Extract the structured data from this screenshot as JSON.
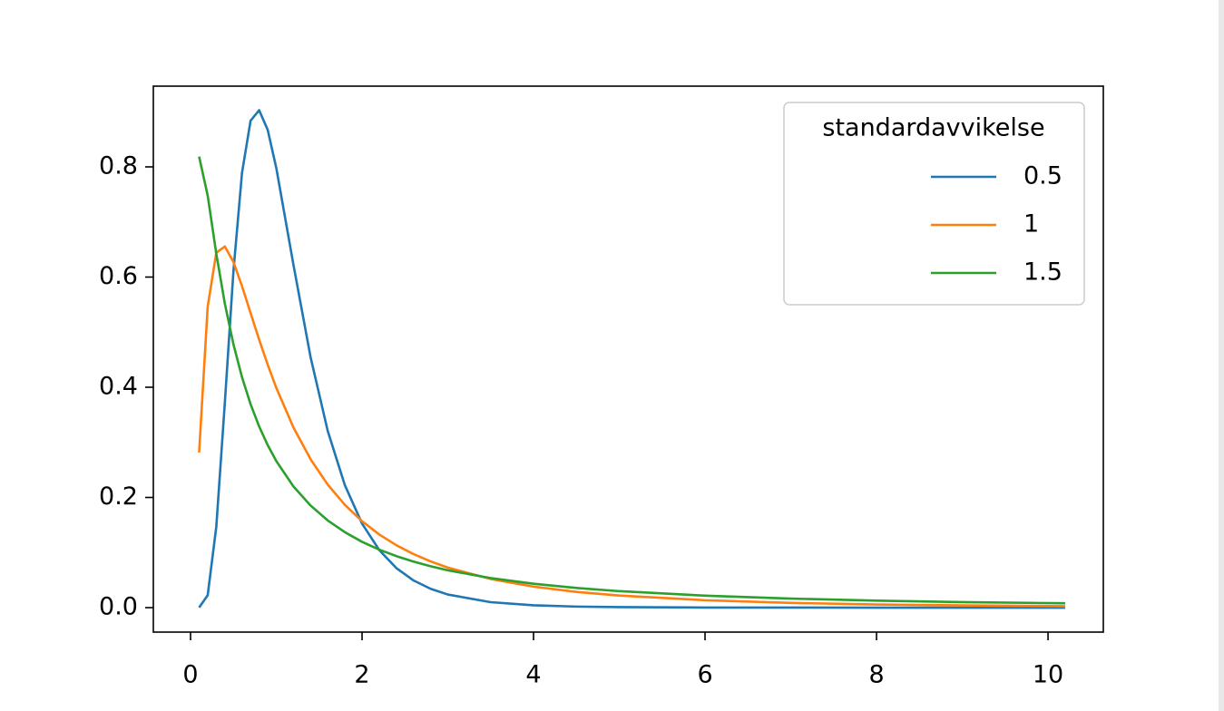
{
  "chart_data": {
    "type": "line",
    "legend_title": "standardavvikelse",
    "legend_position": "upper right",
    "x": [
      0.1,
      0.2,
      0.3,
      0.4,
      0.5,
      0.6,
      0.7,
      0.8,
      0.9,
      1.0,
      1.2,
      1.4,
      1.6,
      1.8,
      2.0,
      2.2,
      2.4,
      2.6,
      2.8,
      3.0,
      3.5,
      4,
      4.5,
      5,
      6,
      7,
      8,
      9,
      10.2
    ],
    "series": [
      {
        "name": "0.5",
        "color": "#1f77b4",
        "values": [
          0.0002,
          0.0225,
          0.1465,
          0.3722,
          0.6104,
          0.7892,
          0.8838,
          0.9028,
          0.867,
          0.7979,
          0.6222,
          0.4544,
          0.3206,
          0.2221,
          0.1526,
          0.1046,
          0.0718,
          0.0494,
          0.0342,
          0.0238,
          0.0099,
          0.0043,
          0.0019,
          0.0009,
          0.0002,
          0.0001,
          0,
          0,
          0
        ]
      },
      {
        "name": "1",
        "color": "#ff7f0e",
        "values": [
          0.2816,
          0.5463,
          0.6442,
          0.6555,
          0.6274,
          0.5836,
          0.5348,
          0.4864,
          0.4408,
          0.3989,
          0.327,
          0.2693,
          0.2232,
          0.1865,
          0.1569,
          0.1329,
          0.1133,
          0.0972,
          0.0839,
          0.0727,
          0.052,
          0.0381,
          0.0286,
          0.0219,
          0.0134,
          0.0086,
          0.0057,
          0.004,
          0.0026
        ]
      },
      {
        "name": "1.5",
        "color": "#2ca02c",
        "values": [
          0.8186,
          0.7479,
          0.6425,
          0.5517,
          0.478,
          0.4183,
          0.3693,
          0.3288,
          0.2948,
          0.266,
          0.22,
          0.1853,
          0.1582,
          0.1369,
          0.1195,
          0.1053,
          0.0935,
          0.0835,
          0.0751,
          0.0678,
          0.0536,
          0.0434,
          0.0358,
          0.0299,
          0.0217,
          0.0164,
          0.0127,
          0.0101,
          0.0079
        ]
      }
    ],
    "xlim": [
      -0.434,
      10.645
    ],
    "ylim": [
      -0.0444,
      0.9465
    ],
    "xticks": [
      0,
      2,
      4,
      6,
      8,
      10
    ],
    "yticks": [
      {
        "value": 0,
        "label": "0.0"
      },
      {
        "value": 0.2,
        "label": "0.2"
      },
      {
        "value": 0.4,
        "label": "0.4"
      },
      {
        "value": 0.6,
        "label": "0.6"
      },
      {
        "value": 0.8,
        "label": "0.8"
      }
    ]
  }
}
